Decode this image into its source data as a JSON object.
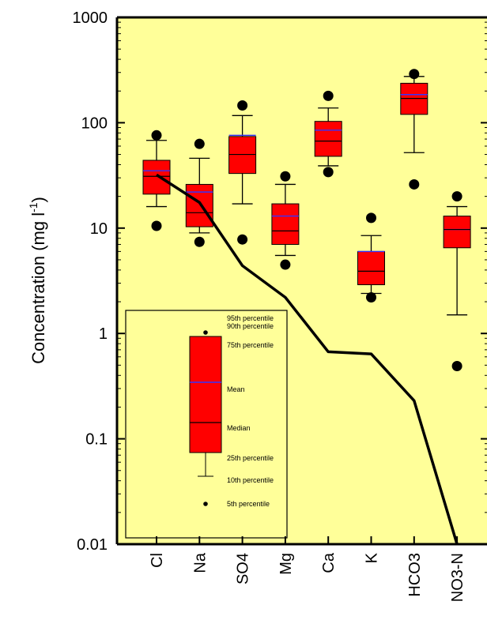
{
  "chart_data": {
    "type": "box",
    "ylabel": "Concentration  (mg l",
    "ylabel_sup": "-1",
    "ylabel_close": ")",
    "yscale": "log",
    "ylim": [
      0.01,
      1000
    ],
    "yticks": [
      "0.01",
      "0.1",
      "1",
      "10",
      "100",
      "1000"
    ],
    "grid": false,
    "colors": {
      "plot_bg": "#ffff99",
      "box_fill": "#ff0000",
      "mean_line": "#3333ff",
      "median_line": "#000000",
      "line": "#000000"
    },
    "categories": [
      "Cl",
      "Na",
      "SO4",
      "Mg",
      "Ca",
      "K",
      "HCO3",
      "NO3-N"
    ],
    "boxes": [
      {
        "p5": 10.5,
        "p10": 16,
        "p25": 21,
        "median": 31,
        "mean": 35,
        "p75": 44,
        "p90": 68,
        "p95": 76
      },
      {
        "p5": 7.4,
        "p10": 9,
        "p25": 10.3,
        "median": 14,
        "mean": 22,
        "p75": 26,
        "p90": 46,
        "p95": 63
      },
      {
        "p5": 7.8,
        "p10": 17,
        "p25": 33,
        "median": 50,
        "mean": 76,
        "p75": 74,
        "p90": 117,
        "p95": 146
      },
      {
        "p5": 4.5,
        "p10": 5.5,
        "p25": 7,
        "median": 9.4,
        "mean": 13,
        "p75": 17,
        "p90": 26,
        "p95": 31
      },
      {
        "p5": 34,
        "p10": 39,
        "p25": 48,
        "median": 67,
        "mean": 85,
        "p75": 103,
        "p90": 138,
        "p95": 180
      },
      {
        "p5": 2.2,
        "p10": 2.4,
        "p25": 2.9,
        "median": 3.9,
        "mean": 6,
        "p75": 6,
        "p90": 8.5,
        "p95": 12.5
      },
      {
        "p5": 26,
        "p10": 52,
        "p25": 120,
        "median": 170,
        "mean": 185,
        "p75": 237,
        "p90": 275,
        "p95": 290
      },
      {
        "p5": 0.49,
        "p10": 1.5,
        "p25": 6.5,
        "median": 9.7,
        "mean": 9.7,
        "p75": 13,
        "p90": 16,
        "p95": 20
      }
    ],
    "line_values": [
      32,
      17.5,
      4.4,
      2.2,
      0.67,
      0.64,
      0.23,
      0.01
    ],
    "legend": {
      "position": "bottom-left",
      "labels": {
        "p95": "95th percentile",
        "p90": "90th percentile",
        "p75": "75th percentile",
        "mean": "Mean",
        "median": "Median",
        "p25": "25th percentile",
        "p10": "10th percentile",
        "p5": "5th percentile"
      }
    }
  }
}
